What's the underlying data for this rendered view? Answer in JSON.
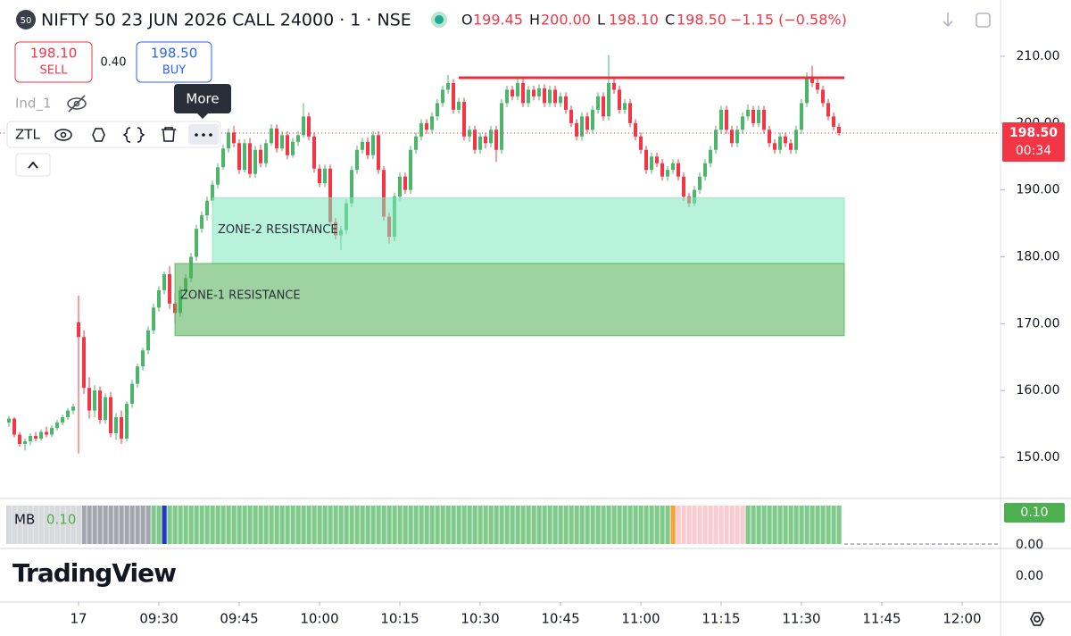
{
  "header": {
    "badge": "50",
    "title": "NIFTY 50 23 JUN 2026 CALL 24000 · 1 · NSE",
    "ohlc": [
      {
        "key": "O",
        "value": "199.45"
      },
      {
        "key": "H",
        "value": "200.00"
      },
      {
        "key": "L",
        "value": "198.10"
      },
      {
        "key": "C",
        "value": "198.50"
      }
    ],
    "change": "−1.15 (−0.58%)"
  },
  "order_panel": {
    "sell_price": "198.10",
    "sell": "SELL",
    "spread": "0.40",
    "buy_price": "198.50",
    "buy": "BUY"
  },
  "indicators": {
    "ind": "Ind_1",
    "tooltip": "More",
    "toolbar_label": "ZTL"
  },
  "chart_data": {
    "type": "candlestick",
    "up_color": "#4db56a",
    "down_color": "#f23645",
    "grid": false,
    "xlim": [
      -14.67,
      172
    ],
    "ylim": [
      143.85,
      218.42
    ],
    "xticks": [
      {
        "value": 0,
        "label": "17"
      },
      {
        "value": 15,
        "label": "09:30"
      },
      {
        "value": 30,
        "label": "09:45"
      },
      {
        "value": 45,
        "label": "10:00"
      },
      {
        "value": 60,
        "label": "10:15"
      },
      {
        "value": 75,
        "label": "10:30"
      },
      {
        "value": 90,
        "label": "10:45"
      },
      {
        "value": 105,
        "label": "11:00"
      },
      {
        "value": 120,
        "label": "11:15"
      },
      {
        "value": 135,
        "label": "11:30"
      },
      {
        "value": 150,
        "label": "11:45"
      },
      {
        "value": 165,
        "label": "12:00"
      }
    ],
    "yticks": [
      {
        "value": 150,
        "label": "150.00"
      },
      {
        "value": 160,
        "label": "160.00"
      },
      {
        "value": 170,
        "label": "170.00"
      },
      {
        "value": 180,
        "label": "180.00"
      },
      {
        "value": 190,
        "label": "190.00"
      },
      {
        "value": 200,
        "label": "200.00"
      },
      {
        "value": 210,
        "label": "210.00"
      }
    ],
    "last_price": {
      "value": 198.5,
      "label": "198.50"
    },
    "countdown": "00:34",
    "zones": [
      {
        "label": "ZONE-2 RESISTANCE",
        "top": 188.8,
        "bottom": 179,
        "from": 25,
        "to": 143,
        "color": "#7ee8bd"
      },
      {
        "label": "ZONE-1 RESISTANCE",
        "top": 179,
        "bottom": 168.2,
        "from": 18,
        "to": 143,
        "color": "#4fae53"
      }
    ],
    "level": {
      "value": 206.8,
      "from": 71,
      "to": 143,
      "color": "#e8303f"
    },
    "x": [
      -13,
      -12,
      -11,
      -10,
      -9,
      -8,
      -7,
      -6,
      -5,
      -4,
      -3,
      -2,
      -1,
      0,
      1,
      2,
      3,
      4,
      5,
      6,
      7,
      8,
      9,
      10,
      11,
      12,
      13,
      14,
      15,
      16,
      17,
      18,
      19,
      20,
      21,
      22,
      23,
      24,
      25,
      26,
      27,
      28,
      29,
      30,
      31,
      32,
      33,
      34,
      35,
      36,
      37,
      38,
      39,
      40,
      41,
      42,
      43,
      44,
      45,
      46,
      47,
      48,
      49,
      50,
      51,
      52,
      53,
      54,
      55,
      56,
      57,
      58,
      59,
      60,
      61,
      62,
      63,
      64,
      65,
      66,
      67,
      68,
      69,
      70,
      71,
      72,
      73,
      74,
      75,
      76,
      77,
      78,
      79,
      80,
      81,
      82,
      83,
      84,
      85,
      86,
      87,
      88,
      89,
      90,
      91,
      92,
      93,
      94,
      95,
      96,
      97,
      98,
      99,
      100,
      101,
      102,
      103,
      104,
      105,
      106,
      107,
      108,
      109,
      110,
      111,
      112,
      113,
      114,
      115,
      116,
      117,
      118,
      119,
      120,
      121,
      122,
      123,
      124,
      125,
      126,
      127,
      128,
      129,
      130,
      131,
      132,
      133,
      134,
      135,
      136,
      137,
      138,
      139,
      140,
      141,
      142
    ],
    "ohlc": [
      [
        155.2,
        156.2,
        154.6,
        155.8
      ],
      [
        155.8,
        156,
        153,
        153.4
      ],
      [
        153.4,
        153.8,
        151.6,
        152
      ],
      [
        152,
        152.8,
        151,
        152.4
      ],
      [
        152.4,
        153.6,
        151.8,
        153.2
      ],
      [
        153.2,
        153.8,
        152.4,
        152.8
      ],
      [
        152.8,
        154.2,
        152.5,
        153.8
      ],
      [
        153.8,
        154.6,
        153,
        153.4
      ],
      [
        153.4,
        154.8,
        153,
        154.4
      ],
      [
        154.4,
        155.6,
        154,
        155.2
      ],
      [
        155.2,
        156.4,
        154.8,
        156
      ],
      [
        156,
        157.4,
        155.6,
        157
      ],
      [
        157,
        158,
        156.4,
        157.6
      ],
      [
        170.2,
        174.2,
        150.6,
        168
      ],
      [
        168,
        169,
        159.5,
        160.4
      ],
      [
        160.4,
        162,
        155.8,
        157
      ],
      [
        157,
        160.8,
        156,
        160
      ],
      [
        160,
        160.6,
        155,
        155.6
      ],
      [
        155.6,
        159.6,
        155,
        159
      ],
      [
        159,
        159.8,
        153,
        153.6
      ],
      [
        153.6,
        156.6,
        152.6,
        156
      ],
      [
        156,
        157,
        152,
        152.8
      ],
      [
        152.8,
        158.4,
        152.4,
        158
      ],
      [
        158,
        161.6,
        157.4,
        161
      ],
      [
        161,
        164,
        160.4,
        163.6
      ],
      [
        163.6,
        166.4,
        163,
        166
      ],
      [
        166,
        169.6,
        165.4,
        169
      ],
      [
        169,
        173,
        168.4,
        172.4
      ],
      [
        172.4,
        175.6,
        171.8,
        175
      ],
      [
        175,
        177.8,
        174.4,
        177.4
      ],
      [
        177.4,
        178.6,
        172.2,
        173
      ],
      [
        173,
        174.6,
        170,
        171.6
      ],
      [
        171.6,
        175.6,
        171,
        175
      ],
      [
        175,
        177.4,
        174.2,
        176.8
      ],
      [
        176.8,
        180.6,
        176.2,
        180
      ],
      [
        180,
        184.8,
        179.4,
        184.2
      ],
      [
        184.2,
        186.8,
        183.6,
        186.2
      ],
      [
        186.2,
        189,
        185.4,
        188.4
      ],
      [
        188.4,
        191.4,
        187.8,
        190.8
      ],
      [
        190.8,
        194,
        190.2,
        193.4
      ],
      [
        193.4,
        196.8,
        193,
        196.2
      ],
      [
        196.2,
        199.2,
        195.6,
        198.6
      ],
      [
        198.6,
        199.6,
        196.4,
        197
      ],
      [
        197,
        197.6,
        192.4,
        193
      ],
      [
        193,
        197.6,
        192.6,
        197
      ],
      [
        197,
        197.8,
        191.8,
        192.4
      ],
      [
        192.4,
        196.6,
        191.8,
        196
      ],
      [
        196,
        196.8,
        193.4,
        194
      ],
      [
        194,
        197.6,
        193.4,
        197
      ],
      [
        197,
        199.8,
        196.6,
        199.2
      ],
      [
        199.2,
        199.8,
        195.6,
        196.2
      ],
      [
        196.2,
        198.8,
        195.8,
        198.2
      ],
      [
        198.2,
        198.8,
        194.6,
        195.2
      ],
      [
        195.2,
        197.8,
        194.8,
        197.2
      ],
      [
        197.2,
        198.8,
        196.6,
        198.2
      ],
      [
        198.2,
        203,
        197.8,
        201
      ],
      [
        201,
        201.6,
        197.4,
        198
      ],
      [
        198,
        198.6,
        192.6,
        193.2
      ],
      [
        193.2,
        193.8,
        190.4,
        191
      ],
      [
        191,
        193.8,
        190.4,
        193.2
      ],
      [
        193.2,
        193.8,
        184.6,
        185.2
      ],
      [
        185.2,
        185.8,
        182.6,
        183.2
      ],
      [
        183.2,
        184.6,
        181,
        184
      ],
      [
        184,
        188.6,
        183.4,
        188
      ],
      [
        188,
        193.6,
        187.4,
        193
      ],
      [
        193,
        196.6,
        192.4,
        196
      ],
      [
        196,
        197.8,
        195.4,
        197.2
      ],
      [
        197.2,
        197.8,
        194.6,
        195.2
      ],
      [
        195.2,
        198.8,
        194.6,
        198.2
      ],
      [
        198.2,
        198.8,
        192.4,
        193
      ],
      [
        193,
        193.6,
        185.4,
        186
      ],
      [
        186,
        186.6,
        182,
        183
      ],
      [
        183,
        189.6,
        182.4,
        189
      ],
      [
        189,
        192.6,
        188.4,
        192
      ],
      [
        192,
        192.6,
        189.4,
        190
      ],
      [
        190,
        196.6,
        189.4,
        196
      ],
      [
        196,
        198.6,
        195.4,
        198
      ],
      [
        198,
        200.6,
        197.4,
        200
      ],
      [
        200,
        200.6,
        198.4,
        199
      ],
      [
        199,
        201.6,
        198.4,
        201
      ],
      [
        201,
        203.6,
        200.4,
        203
      ],
      [
        203,
        205.6,
        202.4,
        205
      ],
      [
        205,
        207.2,
        204.4,
        206
      ],
      [
        206,
        206.6,
        201.4,
        202
      ],
      [
        202,
        203.8,
        201.4,
        203.2
      ],
      [
        203.2,
        203.8,
        197.4,
        198
      ],
      [
        198,
        199.6,
        197.2,
        199
      ],
      [
        199,
        199.6,
        195.4,
        196
      ],
      [
        196,
        198.6,
        195.4,
        198
      ],
      [
        198,
        198.6,
        196.2,
        197
      ],
      [
        197,
        199.6,
        196.4,
        199
      ],
      [
        199,
        199.6,
        194.2,
        196
      ],
      [
        196,
        203.6,
        195.4,
        203
      ],
      [
        203,
        205.6,
        202.4,
        205
      ],
      [
        205,
        205.6,
        203.4,
        204
      ],
      [
        204,
        207,
        203.4,
        206
      ],
      [
        206,
        206.6,
        202.4,
        203
      ],
      [
        203,
        205.6,
        202.4,
        205
      ],
      [
        205,
        205.6,
        203.4,
        204
      ],
      [
        204,
        205.8,
        203.4,
        205.2
      ],
      [
        205.2,
        205.8,
        202.4,
        203
      ],
      [
        203,
        205.6,
        202.4,
        205
      ],
      [
        205,
        205.6,
        202.4,
        203
      ],
      [
        203,
        204.6,
        202.4,
        204
      ],
      [
        204,
        204.6,
        201.4,
        202
      ],
      [
        202,
        202.6,
        199.4,
        200
      ],
      [
        200,
        200.6,
        197.4,
        198
      ],
      [
        198,
        201.6,
        197.4,
        201
      ],
      [
        201,
        201.6,
        198.4,
        199
      ],
      [
        199,
        202.6,
        198.4,
        202
      ],
      [
        202,
        204.6,
        201.4,
        204
      ],
      [
        204,
        204.6,
        200.4,
        201
      ],
      [
        201,
        210.2,
        200.4,
        206
      ],
      [
        206,
        206.6,
        204.4,
        205
      ],
      [
        205,
        205.6,
        201.4,
        202
      ],
      [
        202,
        203.6,
        201.4,
        203
      ],
      [
        203,
        203.6,
        199.4,
        200
      ],
      [
        200,
        200.6,
        197.4,
        198
      ],
      [
        198,
        198.6,
        195.4,
        196
      ],
      [
        196,
        196.6,
        192.4,
        193
      ],
      [
        193,
        195.6,
        192.4,
        195
      ],
      [
        195,
        195.6,
        193.4,
        194
      ],
      [
        194,
        194.6,
        191.4,
        192
      ],
      [
        192,
        193.6,
        191.4,
        193
      ],
      [
        193,
        194.6,
        192.4,
        194
      ],
      [
        194,
        194.6,
        191.4,
        192
      ],
      [
        192,
        192.6,
        188.4,
        189
      ],
      [
        189,
        189.6,
        187.4,
        188
      ],
      [
        188,
        190.6,
        187.6,
        190
      ],
      [
        190,
        192.6,
        189.4,
        192
      ],
      [
        192,
        194.6,
        191.4,
        194
      ],
      [
        194,
        196.6,
        193.4,
        196
      ],
      [
        196,
        199.6,
        195.4,
        199
      ],
      [
        199,
        202.6,
        198.4,
        202
      ],
      [
        202,
        202.6,
        198.4,
        199
      ],
      [
        199,
        199.6,
        196.4,
        197
      ],
      [
        197,
        199.6,
        196.4,
        199
      ],
      [
        199,
        201.6,
        198.4,
        201
      ],
      [
        201,
        202.8,
        200.4,
        202
      ],
      [
        202,
        202.6,
        199.4,
        200
      ],
      [
        200,
        202.6,
        199.4,
        202
      ],
      [
        202,
        202.6,
        198.4,
        199
      ],
      [
        199,
        199.6,
        196.4,
        197
      ],
      [
        197,
        197.6,
        195.4,
        196
      ],
      [
        196,
        198.6,
        195.4,
        198
      ],
      [
        198,
        198.6,
        196.4,
        197
      ],
      [
        197,
        197.6,
        195.4,
        196
      ],
      [
        196,
        199.6,
        195.4,
        199
      ],
      [
        199,
        203.6,
        198.4,
        203
      ],
      [
        203,
        207.6,
        202.4,
        207
      ],
      [
        207,
        208.6,
        205.4,
        206
      ],
      [
        206,
        206.6,
        204.4,
        205
      ],
      [
        205,
        205.6,
        202.4,
        203
      ],
      [
        203,
        203.6,
        200.4,
        201
      ],
      [
        201,
        201.6,
        198.9,
        199.45
      ],
      [
        199.45,
        200,
        198.1,
        198.5
      ]
    ]
  },
  "mb_pane": {
    "name": "MB",
    "value_label": "0.10",
    "axis_label": "0.10",
    "zero": {
      "value": 0,
      "label": "0.00"
    },
    "segments": [
      {
        "from": -13,
        "to": 13,
        "color": "#a3a6ad"
      },
      {
        "from": 14,
        "to": 15,
        "color": "#7fc98a"
      },
      {
        "from": 16,
        "to": 16,
        "color": "#2637c4"
      },
      {
        "from": 17,
        "to": 110,
        "color": "#7fc98a"
      },
      {
        "from": 111,
        "to": 111,
        "color": "#f7a035"
      },
      {
        "from": 112,
        "to": 124,
        "color": "#f8ccd0"
      },
      {
        "from": 125,
        "to": 142,
        "color": "#7fc98a"
      }
    ]
  },
  "pane3": {
    "tick": "0.00"
  },
  "branding": "TradingView"
}
